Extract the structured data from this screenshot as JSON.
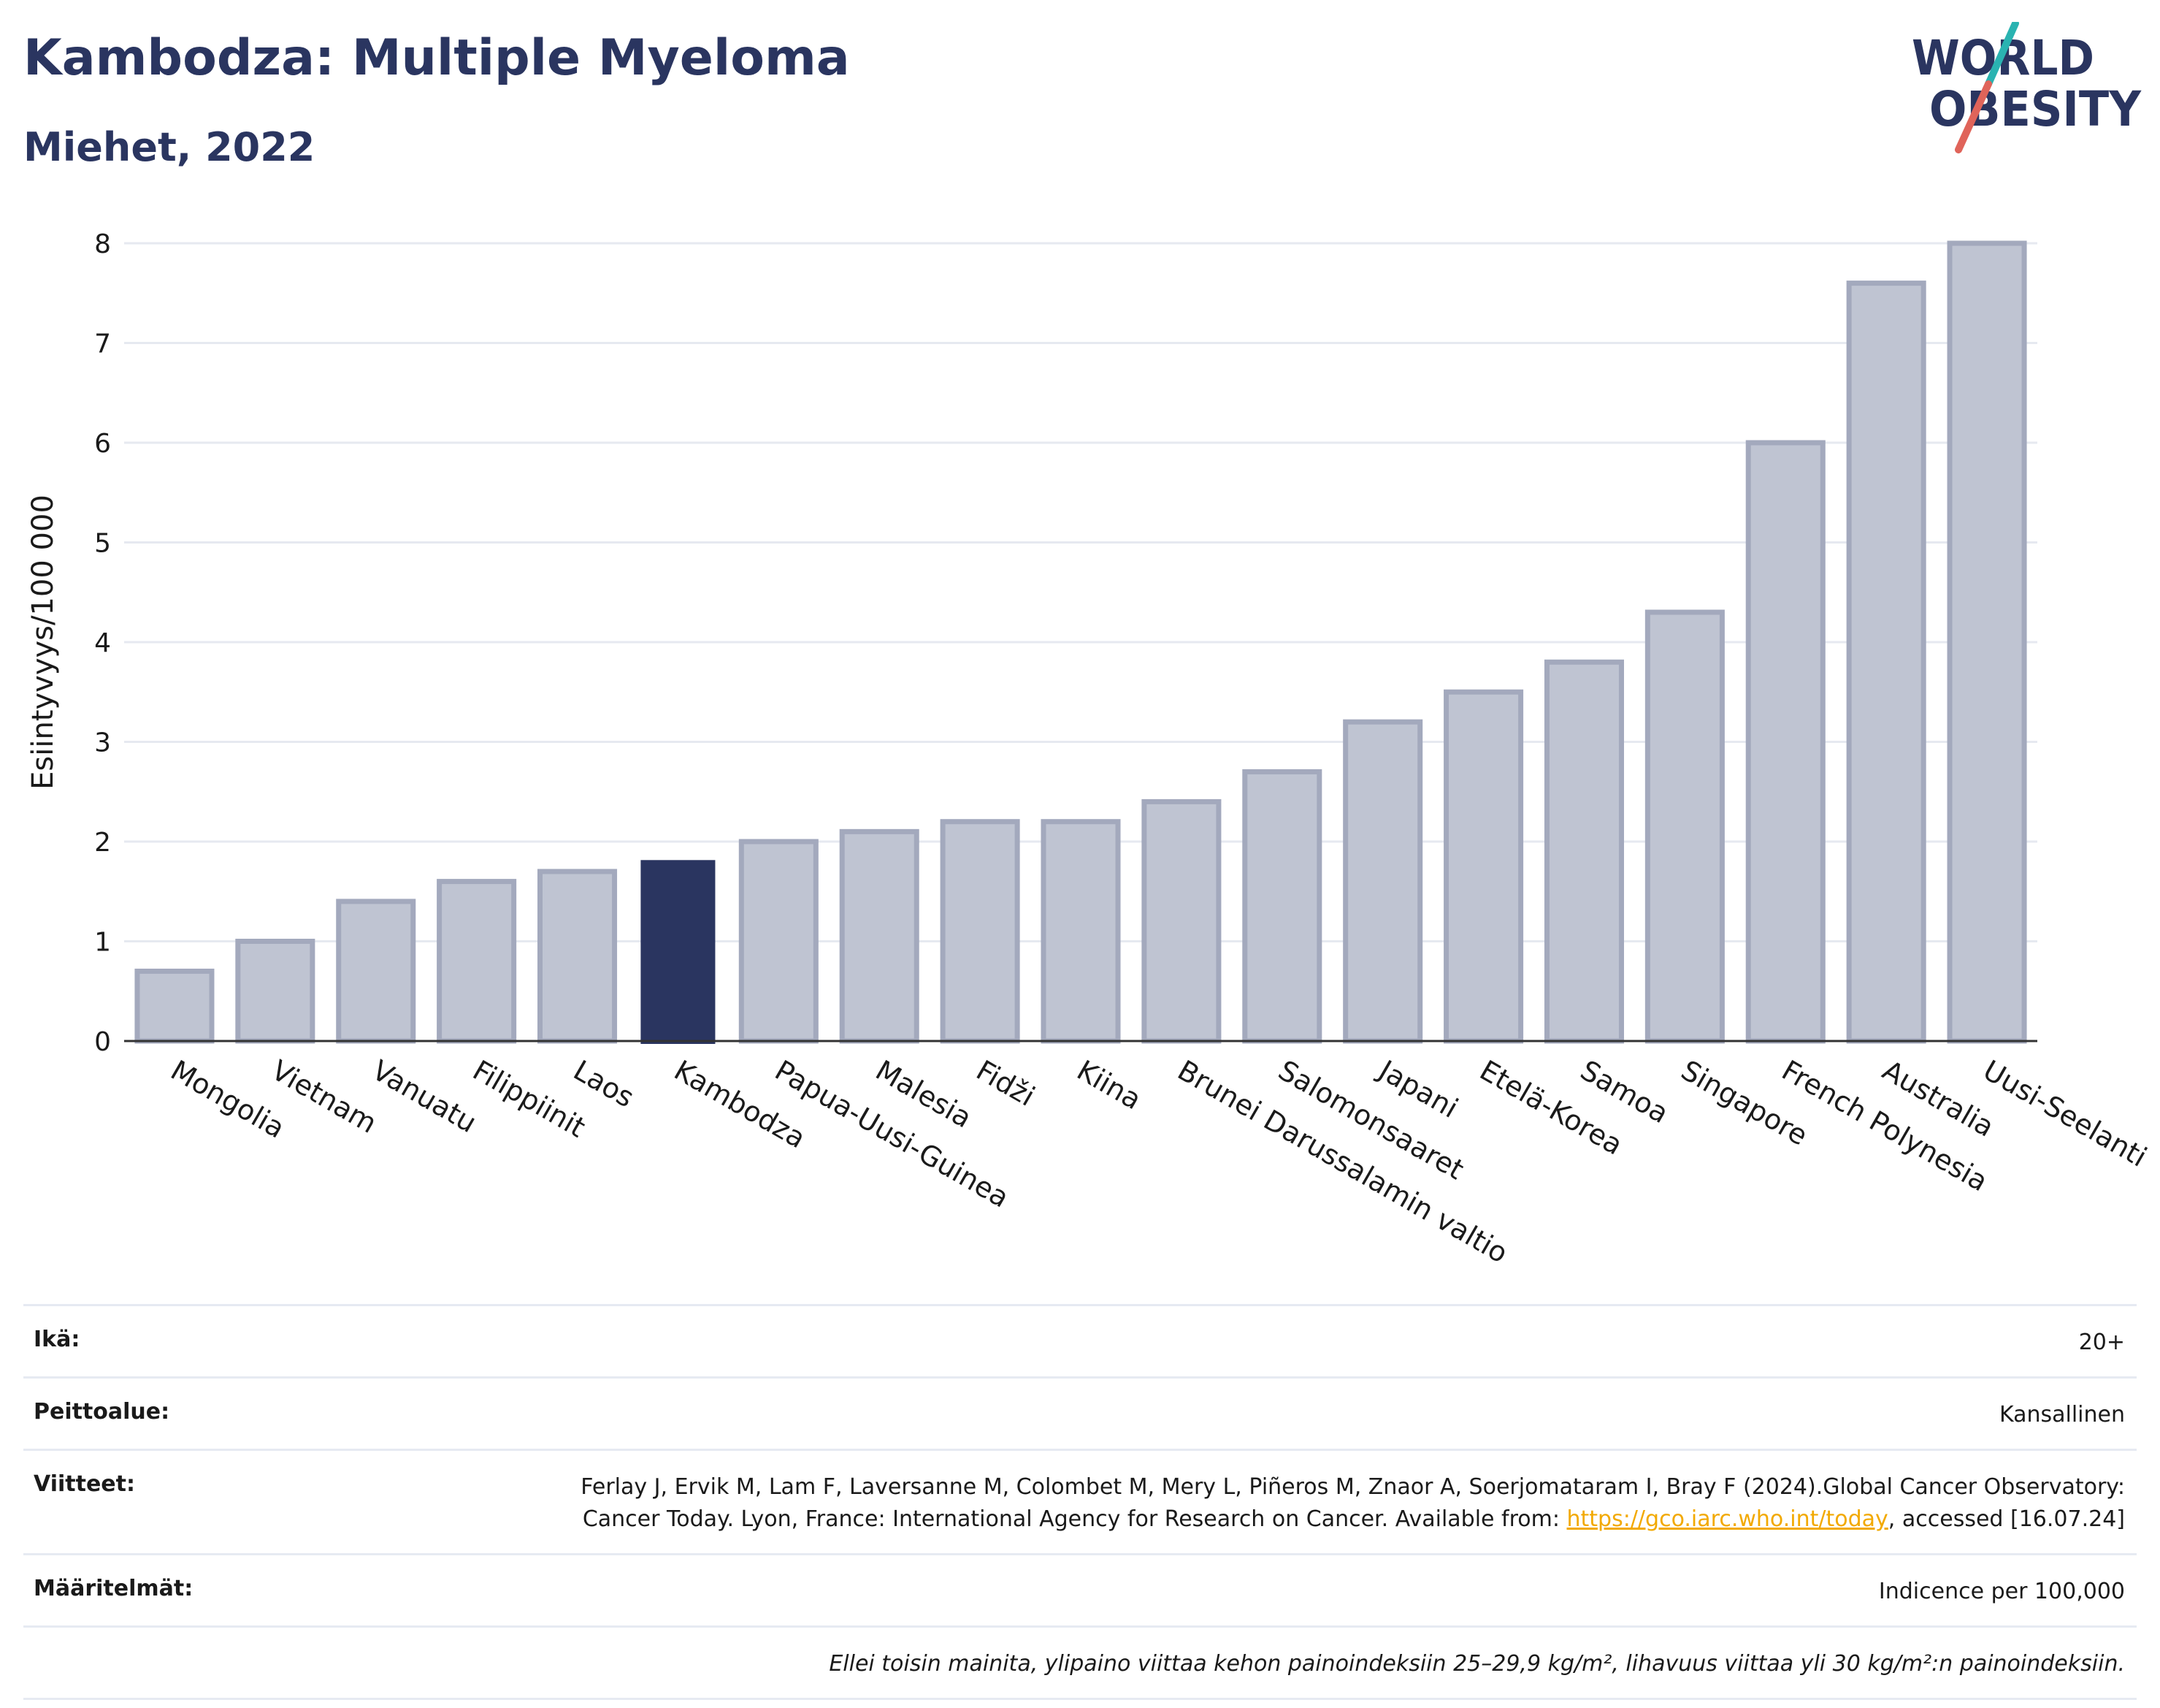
{
  "header": {
    "title": "Kambodza: Multiple Myeloma",
    "subtitle": "Miehet, 2022"
  },
  "logo": {
    "line1": "WORLD",
    "line2": "OBESITY",
    "colors": {
      "text": "#2a3560",
      "slash_top": "#2ab3b1",
      "slash_bottom": "#e0645a"
    }
  },
  "colors": {
    "highlight_bar": "#2a3560",
    "other_bar_fill": "#bfc4d2",
    "other_bar_stroke": "#a3a9bd",
    "gridline": "#e6e9f0",
    "axis_line": "#333333"
  },
  "chart_data": {
    "type": "bar",
    "ylabel": "Esiintyvyys/100 000",
    "ylim": [
      0,
      8
    ],
    "yticks": [
      0,
      1,
      2,
      3,
      4,
      5,
      6,
      7,
      8
    ],
    "grid": true,
    "highlight": "Kambodza",
    "categories": [
      "Mongolia",
      "Vietnam",
      "Vanuatu",
      "Filippiinit",
      "Laos",
      "Kambodza",
      "Papua-Uusi-Guinea",
      "Malesia",
      "Fidži",
      "Kiina",
      "Brunei Darussalamin valtio",
      "Salomonsaaret",
      "Japani",
      "Etelä-Korea",
      "Samoa",
      "Singapore",
      "French Polynesia",
      "Australia",
      "Uusi-Seelanti"
    ],
    "values": [
      0.7,
      1.0,
      1.4,
      1.6,
      1.7,
      1.8,
      2.0,
      2.1,
      2.2,
      2.2,
      2.4,
      2.7,
      3.2,
      3.5,
      3.8,
      4.3,
      6.0,
      7.6,
      8.0
    ]
  },
  "info": {
    "rows": [
      {
        "key": "Ikä:",
        "value": "20+"
      },
      {
        "key": "Peittoalue:",
        "value": "Kansallinen"
      },
      {
        "key": "Viitteet:",
        "value_pre": "Ferlay J, Ervik M, Lam F, Laversanne M, Colombet M, Mery L, Piñeros M, Znaor A, Soerjomataram I, Bray F (2024).Global Cancer Observatory: Cancer Today. Lyon, France: International Agency for Research on Cancer. Available from: ",
        "link": "https://gco.iarc.who.int/today",
        "value_post": ", accessed [16.07.24]"
      },
      {
        "key": "Määritelmät:",
        "value": "Indicence per 100,000"
      }
    ],
    "note": "Ellei toisin mainita, ylipaino viittaa kehon painoindeksiin 25–29,9 kg/m², lihavuus viittaa yli 30 kg/m²:n painoindeksiin."
  }
}
